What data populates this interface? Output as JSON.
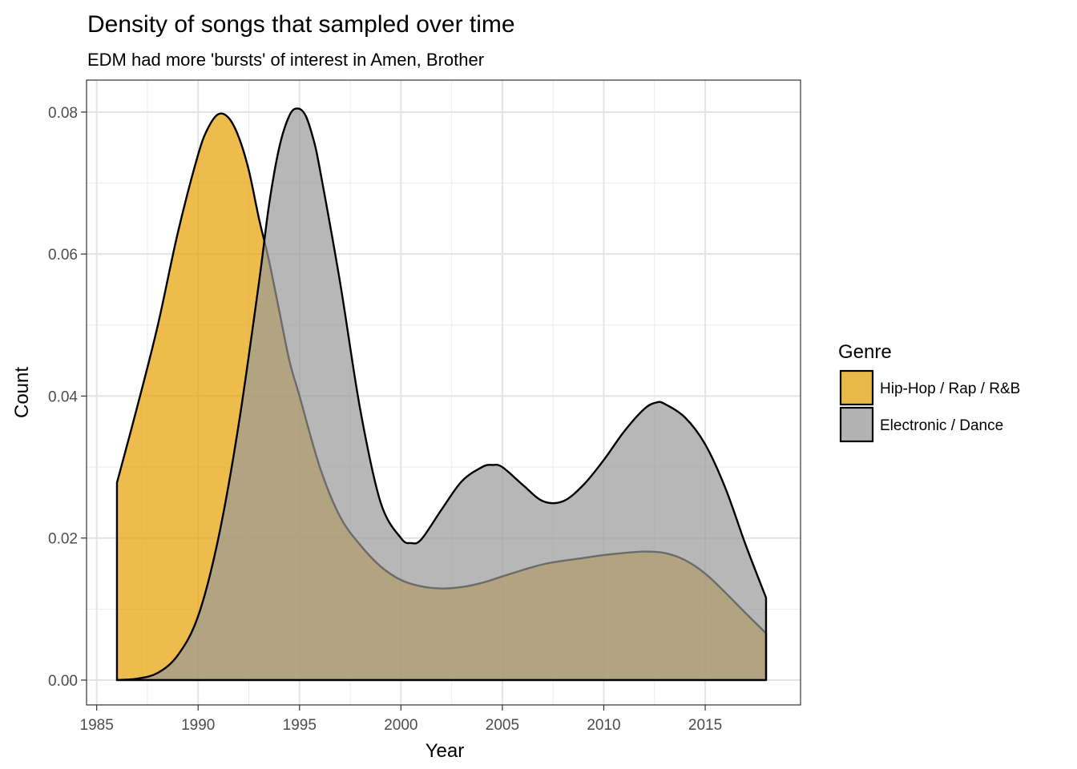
{
  "chart_data": {
    "type": "area",
    "title": "Density of songs that sampled over time",
    "subtitle": "EDM had more 'bursts' of interest in Amen, Brother",
    "xlabel": "Year",
    "ylabel": "Count",
    "xlim": [
      1984.5,
      2019.7
    ],
    "ylim": [
      -0.0035,
      0.0845
    ],
    "x_ticks": [
      1985,
      1990,
      1995,
      2000,
      2005,
      2010,
      2015
    ],
    "y_ticks": [
      0.0,
      0.02,
      0.04,
      0.06,
      0.08
    ],
    "x_tick_labels": [
      "1985",
      "1990",
      "1995",
      "2000",
      "2005",
      "2010",
      "2015"
    ],
    "y_tick_labels": [
      "0.00",
      "0.02",
      "0.04",
      "0.06",
      "0.08"
    ],
    "grid": true,
    "legend": {
      "title": "Genre",
      "position": "right"
    },
    "series": [
      {
        "name": "Hip-Hop / Rap / R&B",
        "color": "#E69F00",
        "x": [
          1986,
          1987,
          1988,
          1989,
          1990,
          1990.5,
          1991,
          1991.5,
          1992,
          1992.5,
          1993,
          1993.5,
          1994,
          1994.5,
          1995,
          1996,
          1997,
          1998,
          1999,
          2000,
          2001,
          2002,
          2003,
          2004,
          2005,
          2006,
          2007,
          2008,
          2009,
          2010,
          2011,
          2012,
          2013,
          2014,
          2015,
          2016,
          2017,
          2018
        ],
        "values": [
          0.0278,
          0.0385,
          0.0498,
          0.063,
          0.074,
          0.0778,
          0.0797,
          0.0792,
          0.0765,
          0.0718,
          0.065,
          0.059,
          0.052,
          0.045,
          0.04,
          0.03,
          0.023,
          0.019,
          0.016,
          0.0141,
          0.0132,
          0.0129,
          0.0131,
          0.0137,
          0.0146,
          0.0155,
          0.0163,
          0.0168,
          0.0172,
          0.0176,
          0.0179,
          0.0181,
          0.0179,
          0.0169,
          0.015,
          0.0123,
          0.0094,
          0.0066
        ]
      },
      {
        "name": "Electronic / Dance",
        "color": "#999999",
        "x": [
          1986,
          1987,
          1988,
          1989,
          1990,
          1991,
          1992,
          1993,
          1993.5,
          1994,
          1994.5,
          1994.9,
          1995.3,
          1995.7,
          1996,
          1997,
          1998,
          1999,
          2000,
          2000.5,
          2001,
          2002,
          2003,
          2004,
          2004.5,
          2005,
          2006,
          2007,
          2008,
          2009,
          2010,
          2011,
          2012,
          2012.6,
          2013,
          2014,
          2015,
          2016,
          2017,
          2018
        ],
        "values": [
          0.0,
          0.0002,
          0.001,
          0.0035,
          0.009,
          0.02,
          0.036,
          0.056,
          0.067,
          0.075,
          0.0795,
          0.0805,
          0.0795,
          0.076,
          0.072,
          0.056,
          0.038,
          0.025,
          0.02,
          0.0193,
          0.0198,
          0.024,
          0.028,
          0.03,
          0.0303,
          0.03,
          0.0275,
          0.0252,
          0.0252,
          0.0275,
          0.031,
          0.035,
          0.0382,
          0.0391,
          0.0389,
          0.037,
          0.0332,
          0.027,
          0.019,
          0.0116
        ]
      }
    ]
  }
}
